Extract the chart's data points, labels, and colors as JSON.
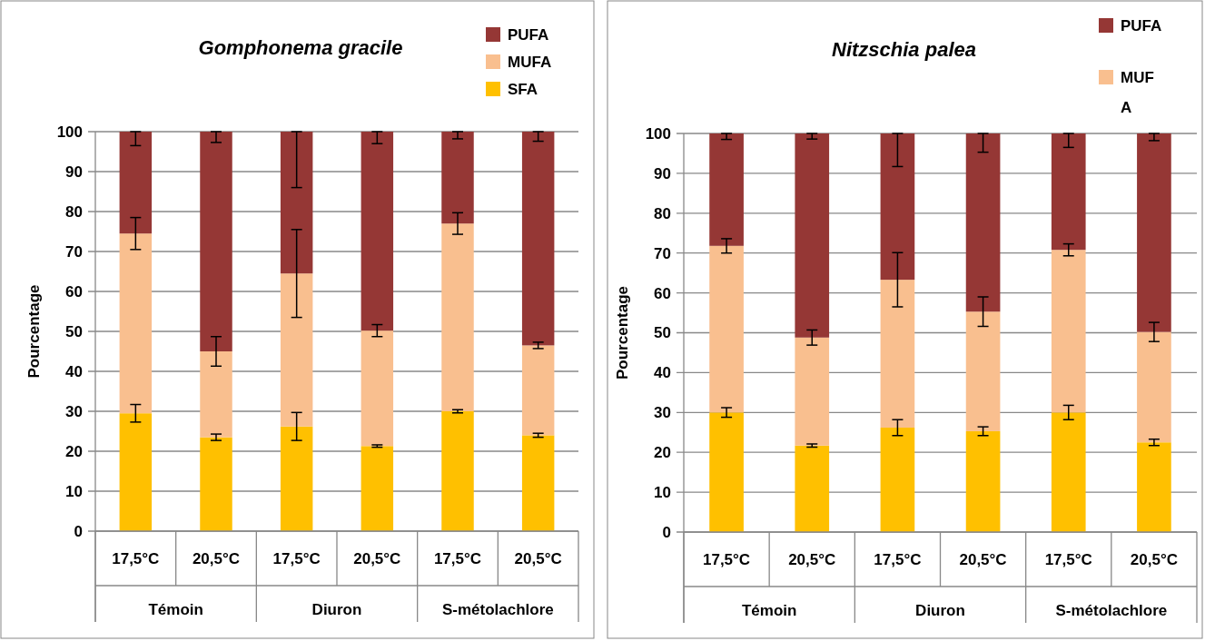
{
  "chart_data": [
    {
      "type": "bar",
      "title": "Gomphonema gracile",
      "ylabel": "Pourcentage",
      "stacked": true,
      "categories": [
        "17,5°C",
        "20,5°C",
        "17,5°C",
        "20,5°C",
        "17,5°C",
        "20,5°C"
      ],
      "annotations": [
        "Témoin",
        "Diuron",
        "S-métolachlore"
      ],
      "ylim": [
        0,
        100
      ],
      "yticks": [
        0,
        10,
        20,
        30,
        40,
        50,
        60,
        70,
        80,
        90,
        100
      ],
      "grid": "y",
      "legend": "top right",
      "series": [
        {
          "name": "SFA",
          "color": "#ffc000",
          "values": [
            29.5,
            23.5,
            26.2,
            21.3,
            30,
            24
          ],
          "errors": [
            2.2,
            0.8,
            3.5,
            0.3,
            0.4,
            0.5
          ]
        },
        {
          "name": "MUFA",
          "color": "#f9bf8f",
          "values": [
            45,
            21.5,
            38.3,
            28.9,
            47,
            22.5
          ],
          "errors": [
            4,
            3.7,
            11,
            1.5,
            2.7,
            0.8
          ]
        },
        {
          "name": "PUFA",
          "color": "#953735",
          "values": [
            25.5,
            55,
            35.5,
            49.8,
            23,
            53.5
          ],
          "errors": [
            [
              96.5,
              100
            ],
            [
              97.3,
              100
            ],
            [
              86,
              100
            ],
            [
              97,
              100
            ],
            [
              98.2,
              100
            ],
            [
              97.6,
              100
            ]
          ]
        }
      ]
    },
    {
      "type": "bar",
      "title": "Nitzschia palea",
      "ylabel": "Pourcentage",
      "stacked": true,
      "categories": [
        "17,5°C",
        "20,5°C",
        "17,5°C",
        "20,5°C",
        "17,5°C",
        "20,5°C"
      ],
      "annotations": [
        "Témoin",
        "Diuron",
        "S-métolachlore"
      ],
      "ylim": [
        0,
        100
      ],
      "yticks": [
        0,
        10,
        20,
        30,
        40,
        50,
        60,
        70,
        80,
        90,
        100
      ],
      "grid": "y",
      "legend": "top right",
      "series": [
        {
          "color": "#ffc000",
          "values": [
            30,
            21.7,
            26.2,
            25.3,
            30,
            22.5
          ],
          "errors": [
            1.2,
            0.4,
            2,
            1.1,
            1.8,
            0.8
          ]
        },
        {
          "name": "MUFA",
          "color": "#f9bf8f",
          "values": [
            41.8,
            27.1,
            37.1,
            30,
            40.8,
            27.7
          ],
          "errors": [
            1.8,
            1.9,
            6.8,
            3.7,
            1.5,
            2.4
          ]
        },
        {
          "name": "PUFA",
          "color": "#953735",
          "values": [
            28.2,
            51.2,
            36.7,
            44.7,
            29.2,
            49.8
          ],
          "errors": [
            [
              98.5,
              100
            ],
            [
              98.6,
              100
            ],
            [
              91.7,
              100
            ],
            [
              95.3,
              100
            ],
            [
              96.5,
              100
            ],
            [
              98.2,
              100
            ]
          ]
        }
      ]
    }
  ]
}
